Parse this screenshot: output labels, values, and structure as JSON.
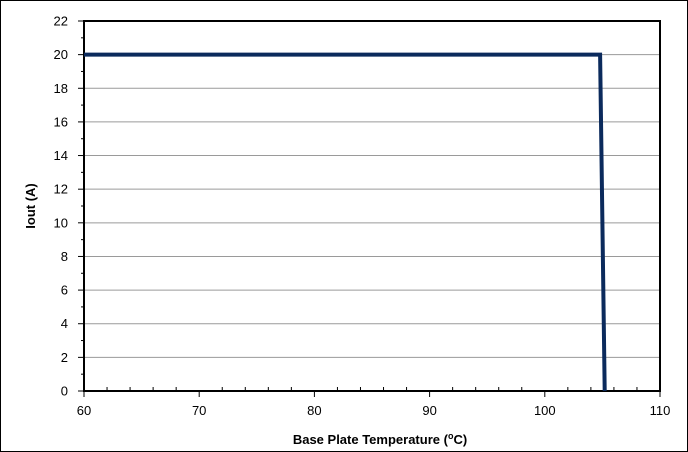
{
  "chart_data": {
    "type": "line",
    "title": "",
    "xlabel": "Base Plate Temperature (",
    "xlabel_sup": "o",
    "xlabel_tail": "C)",
    "ylabel": "Iout (A)",
    "xlim": [
      60,
      110
    ],
    "ylim": [
      0,
      22
    ],
    "x_ticks": [
      60,
      70,
      80,
      90,
      100,
      110
    ],
    "y_ticks": [
      0,
      2,
      4,
      6,
      8,
      10,
      12,
      14,
      16,
      18,
      20,
      22
    ],
    "x_minor_step": 2,
    "y_minor_step": 1,
    "grid": "horizontal major lines",
    "legend": "none",
    "series": [
      {
        "color": "#0b2a5c",
        "x": [
          60,
          104.8,
          105.2
        ],
        "y": [
          20,
          20,
          0
        ]
      }
    ]
  }
}
